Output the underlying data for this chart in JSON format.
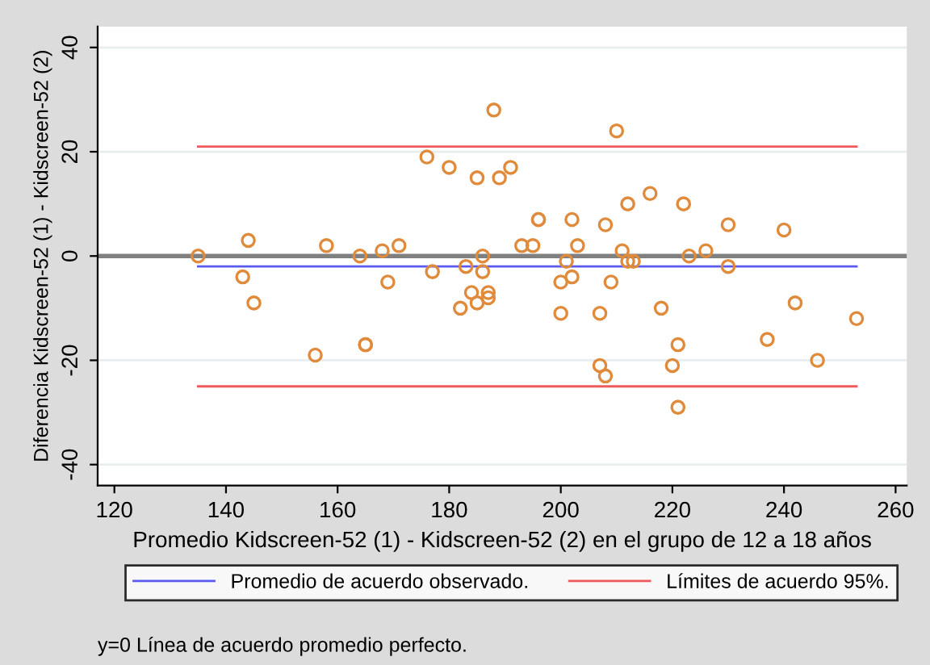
{
  "chart_data": {
    "type": "scatter",
    "xlabel": "Promedio Kidscreen-52 (1) - Kidscreen-52 (2) en el grupo de 12 a 18 años",
    "ylabel": "Diferencia Kidscreen-52 (1) - Kidscreen-52 (2)",
    "xlim": [
      117,
      262
    ],
    "ylim": [
      -44,
      44
    ],
    "xticks": [
      120,
      140,
      160,
      180,
      200,
      220,
      240,
      260
    ],
    "yticks": [
      -40,
      -20,
      0,
      20,
      40
    ],
    "grid": "y",
    "legend": "bottom",
    "marker": "circle",
    "ref_lines": [
      {
        "axis": "y",
        "value": 0,
        "color": "#808080"
      }
    ],
    "annotations": [
      "y=0 Línea de acuerdo promedio perfecto."
    ],
    "series": [
      {
        "color": "#e08a3c",
        "x": [
          135,
          143,
          144,
          145,
          156,
          158,
          164,
          165,
          165,
          168,
          169,
          171,
          176,
          177,
          180,
          182,
          183,
          184,
          185,
          185,
          186,
          186,
          187,
          187,
          188,
          189,
          191,
          193,
          195,
          196,
          196,
          200,
          200,
          201,
          202,
          202,
          203,
          207,
          207,
          208,
          208,
          209,
          210,
          211,
          212,
          212,
          213,
          216,
          218,
          220,
          221,
          221,
          222,
          223,
          226,
          230,
          230,
          237,
          240,
          242,
          246,
          253
        ],
        "values": [
          0,
          -4,
          3,
          -9,
          -19,
          2,
          0,
          -17,
          -17,
          1,
          -5,
          2,
          19,
          -3,
          17,
          -10,
          -2,
          -7,
          15,
          -9,
          0,
          -3,
          -7,
          -8,
          28,
          15,
          17,
          2,
          2,
          7,
          7,
          -5,
          -11,
          -1,
          -4,
          7,
          2,
          -11,
          -21,
          6,
          -23,
          -5,
          24,
          1,
          -1,
          10,
          -1,
          12,
          -10,
          -21,
          -17,
          -29,
          10,
          0,
          1,
          6,
          -2,
          -16,
          5,
          -9,
          -20,
          -12
        ]
      },
      {
        "type": "line",
        "name": "Promedio de acuerdo observado.",
        "color": "#5a5af0",
        "x": [
          135,
          253
        ],
        "values": [
          -2,
          -2
        ],
        "marker": "none"
      },
      {
        "type": "line",
        "name": "Límites de acuerdo 95%.",
        "color": "#f05a5a",
        "x": [
          135,
          253
        ],
        "values": [
          21,
          21
        ],
        "marker": "none"
      },
      {
        "type": "line",
        "color": "#f05a5a",
        "x": [
          135,
          253
        ],
        "values": [
          -25,
          -25
        ],
        "marker": "none"
      }
    ]
  }
}
